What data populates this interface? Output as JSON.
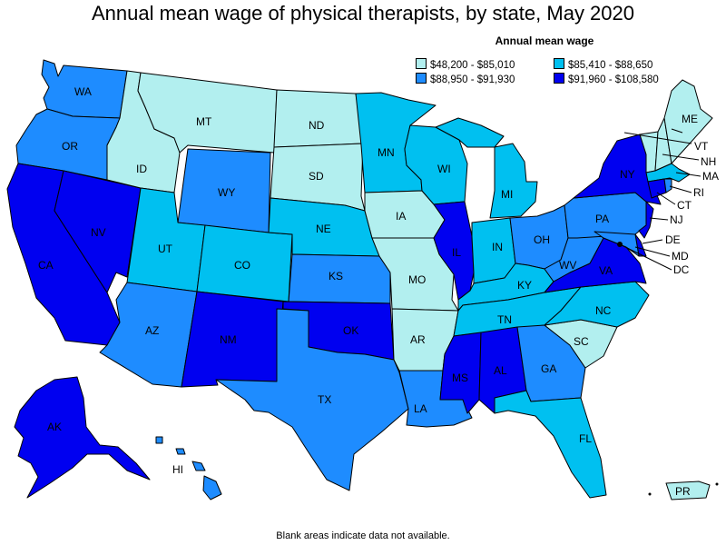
{
  "title": "Annual mean wage of physical therapists, by state, May 2020",
  "legend": {
    "title": "Annual mean wage",
    "items": [
      {
        "label": "$48,200 - $85,010",
        "color": "#b2efef"
      },
      {
        "label": "$85,410 - $88,650",
        "color": "#00c0f0"
      },
      {
        "label": "$88,950 - $91,930",
        "color": "#1e8cff"
      },
      {
        "label": "$91,960 - $108,580",
        "color": "#0000f0"
      }
    ]
  },
  "footnote": "Blank areas indicate data not available.",
  "states": {
    "WA": "WA",
    "OR": "OR",
    "CA": "CA",
    "NV": "NV",
    "ID": "ID",
    "MT": "MT",
    "WY": "WY",
    "UT": "UT",
    "CO": "CO",
    "AZ": "AZ",
    "NM": "NM",
    "ND": "ND",
    "SD": "SD",
    "NE": "NE",
    "KS": "KS",
    "OK": "OK",
    "TX": "TX",
    "MN": "MN",
    "IA": "IA",
    "MO": "MO",
    "AR": "AR",
    "LA": "LA",
    "WI": "WI",
    "IL": "IL",
    "MI": "MI",
    "IN": "IN",
    "OH": "OH",
    "KY": "KY",
    "TN": "TN",
    "MS": "MS",
    "AL": "AL",
    "GA": "GA",
    "FL": "FL",
    "SC": "SC",
    "NC": "NC",
    "VA": "VA",
    "WV": "WV",
    "PA": "PA",
    "NY": "NY",
    "ME": "ME",
    "VT": "VT",
    "NH": "NH",
    "MA": "MA",
    "RI": "RI",
    "CT": "CT",
    "NJ": "NJ",
    "DE": "DE",
    "MD": "MD",
    "DC": "DC",
    "AK": "AK",
    "HI": "HI",
    "PR": "PR"
  }
}
